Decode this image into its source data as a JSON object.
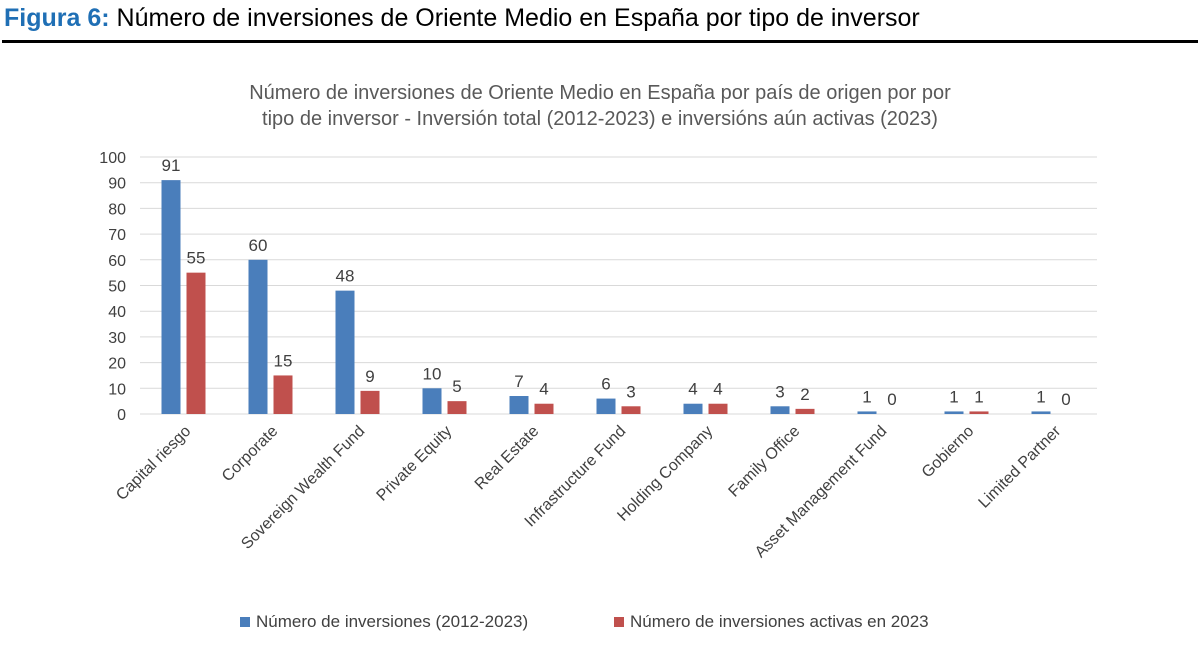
{
  "figure": {
    "label": "Figura 6:",
    "caption": "Número de inversiones de Oriente Medio en España por tipo de inversor",
    "label_color": "#1F6FB5"
  },
  "chart_data": {
    "type": "bar",
    "title_line1": "Número de inversiones de Oriente Medio en España por país de origen por por",
    "title_line2": "tipo de inversor - Inversión total (2012-2023) e inversións aún activas (2023)",
    "categories": [
      "Capital riesgo",
      "Corporate",
      "Sovereign Wealth Fund",
      "Private Equity",
      "Real Estate",
      "Infrastructure Fund",
      "Holding Company",
      "Family Office",
      "Asset Management Fund",
      "Gobierno",
      "Limited Partner"
    ],
    "series": [
      {
        "name": "Número de inversiones (2012-2023)",
        "color": "#4A7EBB",
        "values": [
          91,
          60,
          48,
          10,
          7,
          6,
          4,
          3,
          1,
          1,
          1
        ]
      },
      {
        "name": "Número de inversiones activas en 2023",
        "color": "#C0504D",
        "values": [
          55,
          15,
          9,
          5,
          4,
          3,
          4,
          2,
          0,
          1,
          0
        ]
      }
    ],
    "ylim": [
      0,
      100
    ],
    "yticks": [
      0,
      10,
      20,
      30,
      40,
      50,
      60,
      70,
      80,
      90,
      100
    ],
    "grid": true,
    "data_labels": true,
    "legend_position": "bottom"
  }
}
